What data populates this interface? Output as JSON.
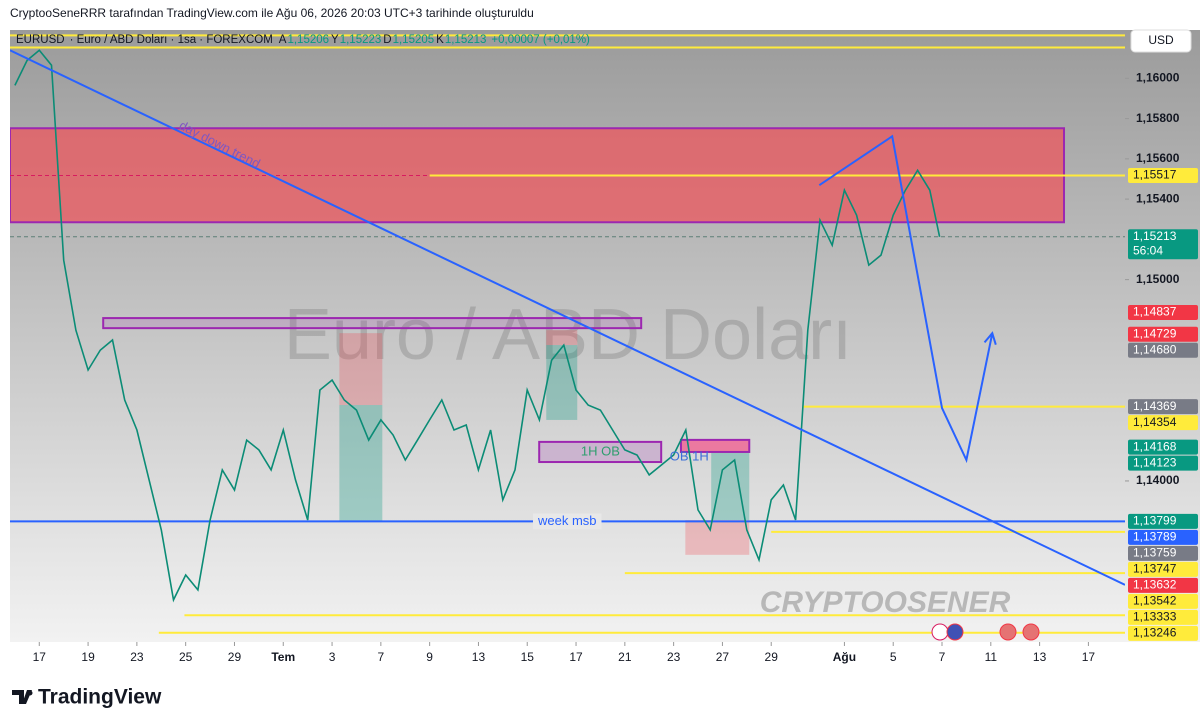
{
  "header": "CryptooSeneRRR tarafından TradingView.com ile Ağu 06, 2026 20:03 UTC+3 tarihinde oluşturuldu",
  "logo": "TradingView",
  "currency": "USD",
  "chart_data": {
    "type": "line",
    "symbol_desc": "· Euro / ABD Doları · 1sa · FOREXCOM",
    "ohlc": [
      {
        "key": "A",
        "value": 1.15206,
        "label": "1,15206"
      },
      {
        "key": "Y",
        "value": 1.15223,
        "label": "1,15223"
      },
      {
        "key": "D",
        "value": 1.15205,
        "label": "1,15205"
      },
      {
        "key": "K",
        "value": 1.15213,
        "label": "1,15213"
      }
    ],
    "change": "+0,00007 (+0,01%)",
    "watermark": "Euro / ABD Doları",
    "signature": "CRYPTOOSENER",
    "x": [
      -1,
      -0.5,
      0,
      0.5,
      1,
      1.5,
      2,
      2.5,
      3,
      3.5,
      4,
      4.5,
      5,
      5.5,
      6,
      6.5,
      7,
      7.5,
      8,
      8.5,
      9,
      9.5,
      10,
      10.5,
      11,
      11.5,
      12,
      12.5,
      13,
      13.5,
      14,
      14.5,
      15,
      15.5,
      16,
      16.5,
      17,
      17.5,
      18,
      18.5,
      19,
      19.5,
      20,
      20.5,
      21,
      21.5,
      22,
      22.5,
      23,
      23.5,
      24,
      24.5,
      25,
      25.5,
      26,
      26.5,
      27,
      27.5,
      28,
      28.5,
      29,
      29.5,
      30,
      30.5,
      31,
      31.5,
      32,
      32.5,
      33,
      33.5,
      34,
      34.5,
      35,
      35.5,
      36,
      36.5,
      36.9
    ],
    "series": [
      {
        "name": "EURUSD",
        "color": "#0b8c76",
        "values": [
          1.15965,
          1.16089,
          1.16139,
          1.16065,
          1.15097,
          1.14749,
          1.14551,
          1.1465,
          1.147,
          1.14402,
          1.14253,
          1.14005,
          1.13757,
          1.13409,
          1.13533,
          1.13459,
          1.13806,
          1.14055,
          1.13955,
          1.14203,
          1.14154,
          1.14055,
          1.14253,
          1.14005,
          1.13806,
          1.14452,
          1.14501,
          1.14402,
          1.14352,
          1.14203,
          1.14303,
          1.14228,
          1.14104,
          1.14203,
          1.14303,
          1.14402,
          1.14253,
          1.14278,
          1.14055,
          1.14253,
          1.13906,
          1.14055,
          1.14452,
          1.14303,
          1.146,
          1.14675,
          1.14452,
          1.14377,
          1.14352,
          1.14253,
          1.14154,
          1.14129,
          1.1403,
          1.14079,
          1.14129,
          1.14253,
          1.13856,
          1.13757,
          1.14055,
          1.14104,
          1.13757,
          1.13608,
          1.13906,
          1.1398,
          1.13806,
          1.14749,
          1.15295,
          1.15171,
          1.15444,
          1.1532,
          1.15072,
          1.15122,
          1.1532,
          1.15444,
          1.15543,
          1.15444,
          1.15213
        ]
      }
    ],
    "xlim": [
      -1.2,
      44.5
    ],
    "xticks": [
      {
        "value": 0,
        "label": "17"
      },
      {
        "value": 2,
        "label": "19"
      },
      {
        "value": 4,
        "label": "23"
      },
      {
        "value": 6,
        "label": "25"
      },
      {
        "value": 8,
        "label": "29"
      },
      {
        "value": 10,
        "label": "Tem"
      },
      {
        "value": 12,
        "label": "3"
      },
      {
        "value": 14,
        "label": "7"
      },
      {
        "value": 16,
        "label": "9"
      },
      {
        "value": 18,
        "label": "13"
      },
      {
        "value": 20,
        "label": "15"
      },
      {
        "value": 22,
        "label": "17"
      },
      {
        "value": 24,
        "label": "21"
      },
      {
        "value": 26,
        "label": "23"
      },
      {
        "value": 28,
        "label": "27"
      },
      {
        "value": 30,
        "label": "29"
      },
      {
        "value": 33,
        "label": "Ağu"
      },
      {
        "value": 35,
        "label": "5"
      },
      {
        "value": 37,
        "label": "7"
      },
      {
        "value": 39,
        "label": "11"
      },
      {
        "value": 41,
        "label": "13"
      },
      {
        "value": 43,
        "label": "17"
      }
    ],
    "ylim": [
      1.132,
      1.1624
    ],
    "yticks": [
      {
        "value": 1.16,
        "label": "1,16000"
      },
      {
        "value": 1.158,
        "label": "1,15800"
      },
      {
        "value": 1.156,
        "label": "1,15600"
      },
      {
        "value": 1.154,
        "label": "1,15400"
      },
      {
        "value": 1.15,
        "label": "1,15000"
      },
      {
        "value": 1.14,
        "label": "1,14000"
      }
    ],
    "grid": false,
    "price_labels": [
      {
        "value": 1.15517,
        "label": "1,15517",
        "color": "#ffeb3b"
      },
      {
        "value": 1.15213,
        "label": "1,15213",
        "color": "#089981",
        "countdown": "56:04"
      },
      {
        "value": 1.14837,
        "label": "1,14837",
        "color": "#f23645"
      },
      {
        "value": 1.14729,
        "label": "1,14729",
        "color": "#f23645"
      },
      {
        "value": 1.1468,
        "label": "1,14680",
        "color": "#787b86"
      },
      {
        "value": 1.14369,
        "label": "1,14369",
        "color": "#787b86"
      },
      {
        "value": 1.14354,
        "label": "1,14354",
        "color": "#ffeb3b"
      },
      {
        "value": 1.14168,
        "label": "1,14168",
        "color": "#089981"
      },
      {
        "value": 1.14123,
        "label": "1,14123",
        "color": "#089981"
      },
      {
        "value": 1.13799,
        "label": "1,13799",
        "color": "#089981"
      },
      {
        "value": 1.13789,
        "label": "1,13789",
        "color": "#2962ff"
      },
      {
        "value": 1.13759,
        "label": "1,13759",
        "color": "#787b86"
      },
      {
        "value": 1.13747,
        "label": "1,13747",
        "color": "#ffeb3b"
      },
      {
        "value": 1.13632,
        "label": "1,13632",
        "color": "#f23645"
      },
      {
        "value": 1.13542,
        "label": "1,13542",
        "color": "#ffeb3b"
      },
      {
        "value": 1.13333,
        "label": "1,13333",
        "color": "#ffeb3b"
      },
      {
        "value": 1.13246,
        "label": "1,13246",
        "color": "#ffeb3b"
      }
    ],
    "zones": [
      {
        "x": [
          -1.2,
          42.0
        ],
        "y": [
          1.15285,
          1.15752
        ],
        "fill": "rgba(239,83,90,0.72)",
        "stroke": "#9c27b0"
      },
      {
        "x": [
          2.62,
          24.67
        ],
        "y": [
          1.14759,
          1.14809
        ],
        "fill": "rgba(156,39,176,0.15)",
        "stroke": "#9c27b0"
      },
      {
        "x": [
          12.3,
          14.06
        ],
        "y": [
          1.14377,
          1.14734
        ],
        "fill": "rgba(242,54,69,0.25)"
      },
      {
        "x": [
          12.3,
          14.06
        ],
        "y": [
          1.13797,
          1.14377
        ],
        "fill": "rgba(8,153,129,0.3)"
      },
      {
        "x": [
          20.78,
          22.05
        ],
        "y": [
          1.14675,
          1.14749
        ],
        "fill": "rgba(242,54,69,0.25)"
      },
      {
        "x": [
          20.78,
          22.05
        ],
        "y": [
          1.14303,
          1.14675
        ],
        "fill": "rgba(8,153,129,0.3)"
      },
      {
        "x": [
          26.48,
          29.1
        ],
        "y": [
          1.13633,
          1.13806
        ],
        "fill": "rgba(242,54,69,0.25)"
      },
      {
        "x": [
          27.54,
          29.1
        ],
        "y": [
          1.13806,
          1.14144
        ],
        "fill": "rgba(8,153,129,0.3)"
      },
      {
        "x": [
          20.49,
          25.49
        ],
        "y": [
          1.14094,
          1.14194
        ],
        "fill": "rgba(156,39,176,0.2)",
        "stroke": "#9c27b0"
      },
      {
        "x": [
          26.3,
          29.1
        ],
        "y": [
          1.14144,
          1.14204
        ],
        "fill": "rgba(240,98,146,0.8)",
        "stroke": "#9c27b0"
      }
    ],
    "hlines": [
      {
        "y": 1.16213,
        "color": "#ffeb3b"
      },
      {
        "y": 1.16153,
        "color": "#ffeb3b"
      },
      {
        "y": 1.15517,
        "x1": 16,
        "color": "#d81b60",
        "dash": true
      },
      {
        "y": 1.15517,
        "x0": 16,
        "color": "#ffeb3b"
      },
      {
        "y": 1.15213,
        "color": "#5d7f77",
        "dash": true
      },
      {
        "y": 1.14369,
        "x0": 31.3,
        "color": "#ffeb3b"
      },
      {
        "y": 1.13799,
        "color": "#2962ff"
      },
      {
        "y": 1.13747,
        "x0": 30.0,
        "color": "#ffeb3b"
      },
      {
        "y": 1.13542,
        "x0": 24.0,
        "color": "#ffeb3b"
      },
      {
        "y": 1.13333,
        "x0": 5.95,
        "color": "#ffeb3b"
      },
      {
        "y": 1.13246,
        "x0": 4.9,
        "color": "#ffeb3b"
      }
    ],
    "trendlines": [
      {
        "x": [
          -1.2,
          44.5
        ],
        "y": [
          1.16139,
          1.13484
        ],
        "color": "#2962ff"
      },
      {
        "x": [
          31.97,
          34.96,
          37.0,
          38.0,
          39.06
        ],
        "y": [
          1.15469,
          1.15712,
          1.14362,
          1.14104,
          1.14734
        ],
        "color": "#2962ff",
        "arrow": true
      }
    ],
    "annotations": [
      {
        "text": "day down trend",
        "x": 7.38,
        "y": 1.15667,
        "color": "#7e57c2",
        "rotate": 27
      },
      {
        "text": "week msb",
        "x": 21.64,
        "y": 1.13799,
        "color": "#2962ff",
        "box": true
      },
      {
        "text": "1H OB",
        "x": 23.0,
        "y": 1.14144,
        "color": "#2e9e6e"
      },
      {
        "text": "OB 1H",
        "x": 26.64,
        "y": 1.14119,
        "color": "#3b6fd8"
      }
    ]
  }
}
